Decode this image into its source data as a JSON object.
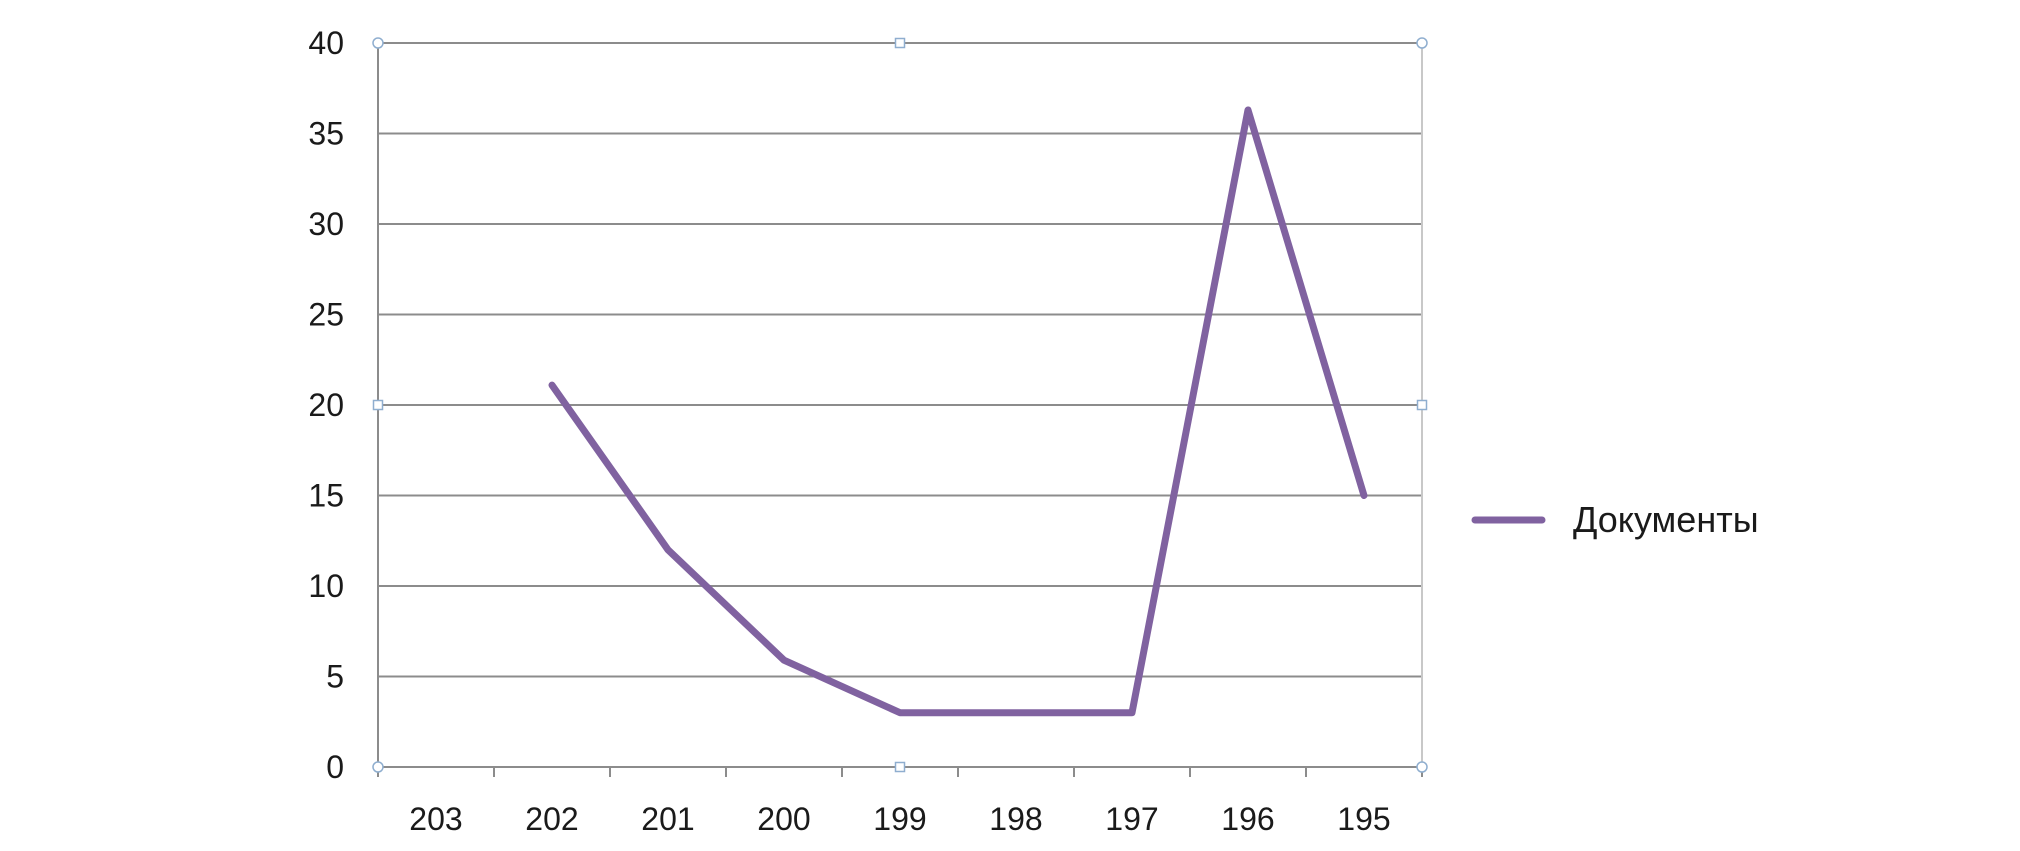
{
  "chart_data": {
    "type": "line",
    "categories": [
      "203",
      "202",
      "201",
      "200",
      "199",
      "198",
      "197",
      "196",
      "195"
    ],
    "series": [
      {
        "name": "Документы",
        "values": [
          null,
          21.1,
          12.0,
          5.9,
          3.0,
          3.0,
          3.0,
          36.3,
          15.0
        ],
        "color": "#8062a0"
      }
    ],
    "yticks": [
      "0",
      "5",
      "10",
      "15",
      "20",
      "25",
      "30",
      "35",
      "40"
    ],
    "ylim": [
      0,
      40
    ],
    "grid": true,
    "legend": "right",
    "colors": {
      "grid": "#8c8c8c",
      "axis": "#8c8c8c",
      "handle": "#8faecf"
    }
  }
}
